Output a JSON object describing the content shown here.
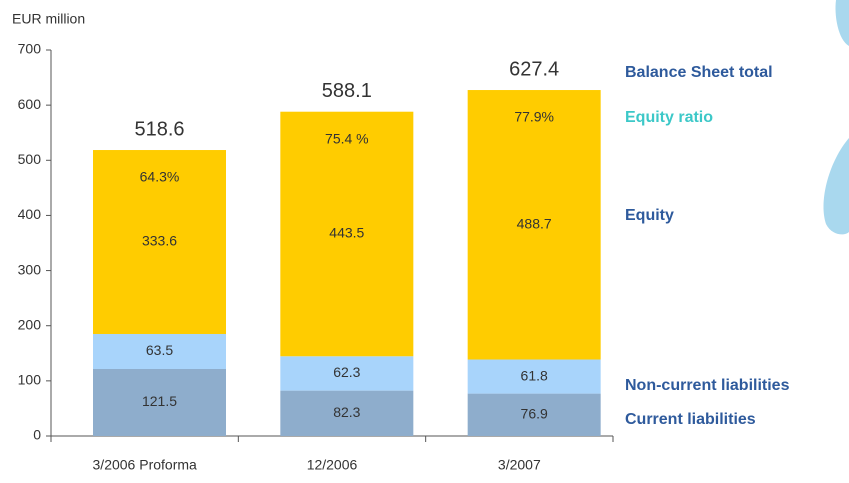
{
  "chart_data": {
    "type": "stacked_bar",
    "y_label": "EUR million",
    "categories": [
      "3/2006 Proforma",
      "12/2006",
      "3/2007"
    ],
    "series": [
      {
        "name": "Current liabilities",
        "color": "#8eadcc",
        "values": [
          121.5,
          82.3,
          76.9
        ]
      },
      {
        "name": "Non-current liabilities",
        "color": "#a8d4fb",
        "values": [
          63.5,
          62.3,
          61.8
        ]
      },
      {
        "name": "Equity",
        "color": "#ffcc00",
        "values": [
          333.6,
          443.5,
          488.7
        ]
      }
    ],
    "totals": {
      "name": "Balance Sheet total",
      "values": [
        518.6,
        588.1,
        627.4
      ]
    },
    "equity_ratio": {
      "name": "Equity ratio",
      "color": "#3cc8c8",
      "values": [
        64.3,
        75.4,
        77.9
      ],
      "value_labels": [
        "64.3%",
        "75.4 %",
        "77.9%"
      ]
    },
    "ylim": [
      0,
      700
    ],
    "yticks": [
      0,
      100,
      200,
      300,
      400,
      500,
      600,
      700
    ]
  }
}
